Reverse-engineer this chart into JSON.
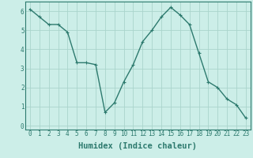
{
  "x": [
    0,
    1,
    2,
    3,
    4,
    5,
    6,
    7,
    8,
    9,
    10,
    11,
    12,
    13,
    14,
    15,
    16,
    17,
    18,
    19,
    20,
    21,
    22,
    23
  ],
  "y": [
    6.1,
    5.7,
    5.3,
    5.3,
    4.9,
    3.3,
    3.3,
    3.2,
    0.7,
    1.2,
    2.3,
    3.2,
    4.4,
    5.0,
    5.7,
    6.2,
    5.8,
    5.3,
    3.8,
    2.3,
    2.0,
    1.4,
    1.1,
    0.4
  ],
  "line_color": "#2d7a6e",
  "marker": "+",
  "marker_color": "#2d7a6e",
  "bg_color": "#cceee8",
  "grid_color": "#aad4cc",
  "xlabel": "Humidex (Indice chaleur)",
  "xlabel_style": "bold",
  "ylim": [
    -0.2,
    6.5
  ],
  "xlim": [
    -0.5,
    23.5
  ],
  "yticks": [
    0,
    1,
    2,
    3,
    4,
    5,
    6
  ],
  "xticks": [
    0,
    1,
    2,
    3,
    4,
    5,
    6,
    7,
    8,
    9,
    10,
    11,
    12,
    13,
    14,
    15,
    16,
    17,
    18,
    19,
    20,
    21,
    22,
    23
  ],
  "tick_label_fontsize": 5.5,
  "xlabel_fontsize": 7.5,
  "line_width": 1.0,
  "marker_size": 3.5,
  "tick_color": "#2d7a6e",
  "spine_color": "#2d7a6e"
}
